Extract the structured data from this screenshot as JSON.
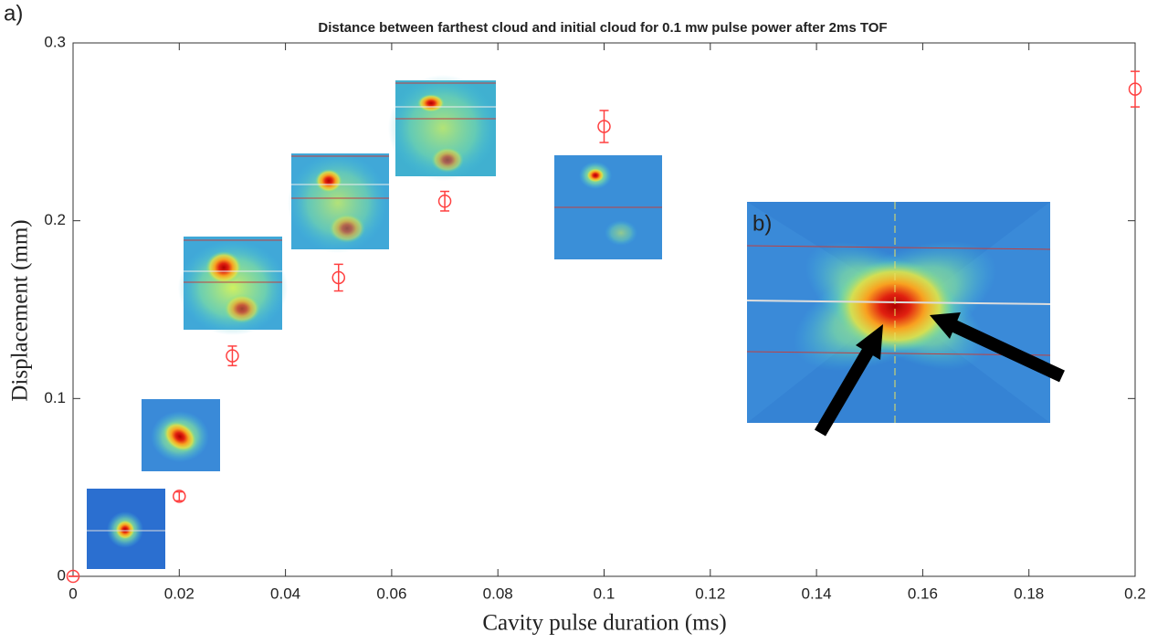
{
  "chart_data": {
    "type": "scatter",
    "title": "Distance between farthest cloud and initial cloud for 0.1 mw pulse power after 2ms TOF",
    "x_label": "Cavity pulse duration (ms)",
    "y_label": "Displacement (mm)",
    "annotations": [
      "a)",
      "b)"
    ],
    "x": [
      0,
      0.02,
      0.03,
      0.05,
      0.07,
      0.1,
      0.2
    ],
    "values": [
      0,
      0.045,
      0.124,
      0.168,
      0.211,
      0.253,
      0.274
    ],
    "errors": [
      0,
      0.0025,
      0.0055,
      0.0075,
      0.0055,
      0.009,
      0.01
    ],
    "color": "#ff4040",
    "xlim": [
      0,
      0.2
    ],
    "xticks": [
      0,
      0.02,
      0.04,
      0.06,
      0.08,
      0.1,
      0.12,
      0.14,
      0.16,
      0.18,
      0.2
    ],
    "ylim": [
      0,
      0.3
    ],
    "yticks": [
      0,
      0.1,
      0.2,
      0.3
    ],
    "grid": false
  }
}
